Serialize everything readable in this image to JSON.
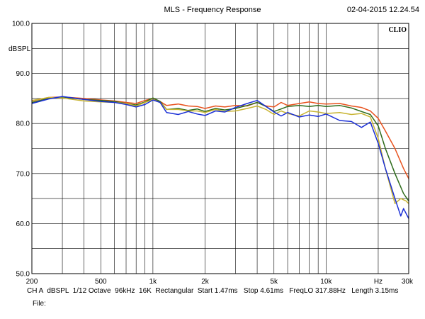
{
  "header": {
    "title": "MLS - Frequency Response",
    "timestamp": "02-04-2015 12.24.54"
  },
  "footer": {
    "settings": "CH A  dBSPL  1/12 Octave  96kHz  16K  Rectangular  Start 1.47ms   Stop 4.61ms   FreqLO 317.88Hz   Length 3.15ms",
    "file_label": "File:"
  },
  "chart_data": {
    "type": "line",
    "title": "MLS - Frequency Response",
    "brand": "CLIO",
    "ylabel": "dBSPL",
    "xlabel": "Hz",
    "x_scale": "log",
    "xlim": [
      200,
      30000
    ],
    "ylim": [
      50,
      100
    ],
    "grid": true,
    "y_ticks": [
      {
        "value": 100,
        "label": "100.0"
      },
      {
        "value": 90,
        "label": "90.0"
      },
      {
        "value": 80,
        "label": "80.0"
      },
      {
        "value": 70,
        "label": "70.0"
      },
      {
        "value": 60,
        "label": "60.0"
      },
      {
        "value": 50,
        "label": "50.0"
      }
    ],
    "x_ticks": [
      {
        "value": 200,
        "label": "200"
      },
      {
        "value": 500,
        "label": "500"
      },
      {
        "value": 1000,
        "label": "1k"
      },
      {
        "value": 2000,
        "label": "2k"
      },
      {
        "value": 5000,
        "label": "5k"
      },
      {
        "value": 10000,
        "label": "10k"
      },
      {
        "value": 20000,
        "label": "Hz"
      },
      {
        "value": 30000,
        "label": "30k"
      }
    ],
    "series": [
      {
        "color": "#e8521e",
        "points": [
          [
            200,
            84.5
          ],
          [
            250,
            85.2
          ],
          [
            300,
            85.3
          ],
          [
            400,
            85.0
          ],
          [
            500,
            84.7
          ],
          [
            600,
            84.5
          ],
          [
            700,
            84.2
          ],
          [
            800,
            84.0
          ],
          [
            900,
            84.6
          ],
          [
            1000,
            85.0
          ],
          [
            1100,
            84.4
          ],
          [
            1200,
            83.6
          ],
          [
            1400,
            83.9
          ],
          [
            1600,
            83.5
          ],
          [
            1800,
            83.4
          ],
          [
            2000,
            83.0
          ],
          [
            2300,
            83.5
          ],
          [
            2600,
            83.3
          ],
          [
            3000,
            83.6
          ],
          [
            3500,
            83.5
          ],
          [
            4000,
            84.2
          ],
          [
            4500,
            83.5
          ],
          [
            5000,
            83.3
          ],
          [
            5500,
            84.2
          ],
          [
            6000,
            83.6
          ],
          [
            7000,
            84.0
          ],
          [
            8000,
            84.3
          ],
          [
            9000,
            84.0
          ],
          [
            10000,
            83.9
          ],
          [
            12000,
            84.0
          ],
          [
            14000,
            83.5
          ],
          [
            16000,
            83.2
          ],
          [
            18000,
            82.5
          ],
          [
            20000,
            81.0
          ],
          [
            22000,
            78.5
          ],
          [
            25000,
            75.0
          ],
          [
            28000,
            71.0
          ],
          [
            30000,
            69.0
          ]
        ]
      },
      {
        "color": "#2e6b1a",
        "points": [
          [
            200,
            84.2
          ],
          [
            250,
            85.0
          ],
          [
            300,
            85.3
          ],
          [
            400,
            84.8
          ],
          [
            500,
            84.6
          ],
          [
            600,
            84.4
          ],
          [
            700,
            84.0
          ],
          [
            800,
            83.7
          ],
          [
            900,
            84.3
          ],
          [
            1000,
            85.1
          ],
          [
            1100,
            84.4
          ],
          [
            1200,
            82.8
          ],
          [
            1400,
            83.0
          ],
          [
            1600,
            82.6
          ],
          [
            1800,
            82.9
          ],
          [
            2000,
            82.4
          ],
          [
            2300,
            83.0
          ],
          [
            2600,
            82.7
          ],
          [
            3000,
            83.0
          ],
          [
            3500,
            83.6
          ],
          [
            4000,
            84.2
          ],
          [
            4500,
            83.4
          ],
          [
            5000,
            82.4
          ],
          [
            5500,
            82.9
          ],
          [
            6000,
            83.4
          ],
          [
            7000,
            83.6
          ],
          [
            8000,
            83.4
          ],
          [
            9000,
            83.6
          ],
          [
            10000,
            83.4
          ],
          [
            12000,
            83.6
          ],
          [
            14000,
            83.1
          ],
          [
            16000,
            82.4
          ],
          [
            18000,
            81.8
          ],
          [
            20000,
            79.5
          ],
          [
            22000,
            75.0
          ],
          [
            25000,
            70.0
          ],
          [
            28000,
            66.0
          ],
          [
            30000,
            64.5
          ]
        ]
      },
      {
        "color": "#c8b432",
        "points": [
          [
            200,
            84.6
          ],
          [
            250,
            85.2
          ],
          [
            300,
            85.1
          ],
          [
            400,
            84.5
          ],
          [
            500,
            84.3
          ],
          [
            600,
            84.2
          ],
          [
            700,
            84.0
          ],
          [
            800,
            83.5
          ],
          [
            900,
            84.2
          ],
          [
            1000,
            84.8
          ],
          [
            1100,
            84.2
          ],
          [
            1200,
            82.8
          ],
          [
            1400,
            82.8
          ],
          [
            1600,
            82.5
          ],
          [
            1800,
            82.5
          ],
          [
            2000,
            82.2
          ],
          [
            2300,
            82.8
          ],
          [
            2600,
            82.4
          ],
          [
            3000,
            82.5
          ],
          [
            3500,
            83.0
          ],
          [
            4000,
            83.5
          ],
          [
            4500,
            82.8
          ],
          [
            5000,
            81.8
          ],
          [
            5500,
            82.5
          ],
          [
            6000,
            82.0
          ],
          [
            7000,
            81.5
          ],
          [
            8000,
            82.5
          ],
          [
            9000,
            82.3
          ],
          [
            10000,
            82.0
          ],
          [
            12000,
            82.2
          ],
          [
            14000,
            81.8
          ],
          [
            16000,
            82.0
          ],
          [
            18000,
            81.3
          ],
          [
            20000,
            77.0
          ],
          [
            22000,
            71.0
          ],
          [
            25000,
            64.0
          ],
          [
            27000,
            65.0
          ],
          [
            29000,
            64.5
          ],
          [
            30000,
            64.0
          ]
        ]
      },
      {
        "color": "#1a2fd6",
        "points": [
          [
            200,
            84.0
          ],
          [
            250,
            84.9
          ],
          [
            300,
            85.4
          ],
          [
            400,
            84.8
          ],
          [
            500,
            84.4
          ],
          [
            600,
            84.2
          ],
          [
            700,
            83.8
          ],
          [
            800,
            83.3
          ],
          [
            900,
            83.8
          ],
          [
            1000,
            84.7
          ],
          [
            1100,
            84.2
          ],
          [
            1200,
            82.2
          ],
          [
            1400,
            81.8
          ],
          [
            1600,
            82.4
          ],
          [
            1800,
            81.9
          ],
          [
            2000,
            81.6
          ],
          [
            2300,
            82.5
          ],
          [
            2600,
            82.3
          ],
          [
            3000,
            83.2
          ],
          [
            3500,
            84.0
          ],
          [
            4000,
            84.6
          ],
          [
            4500,
            83.4
          ],
          [
            5000,
            82.3
          ],
          [
            5500,
            81.5
          ],
          [
            6000,
            82.2
          ],
          [
            7000,
            81.3
          ],
          [
            8000,
            81.7
          ],
          [
            9000,
            81.4
          ],
          [
            10000,
            81.9
          ],
          [
            12000,
            80.6
          ],
          [
            14000,
            80.4
          ],
          [
            16000,
            79.2
          ],
          [
            18000,
            80.3
          ],
          [
            20000,
            76.0
          ],
          [
            22000,
            71.0
          ],
          [
            25000,
            65.0
          ],
          [
            27000,
            61.5
          ],
          [
            28000,
            63.0
          ],
          [
            30000,
            61.0
          ]
        ]
      }
    ]
  }
}
